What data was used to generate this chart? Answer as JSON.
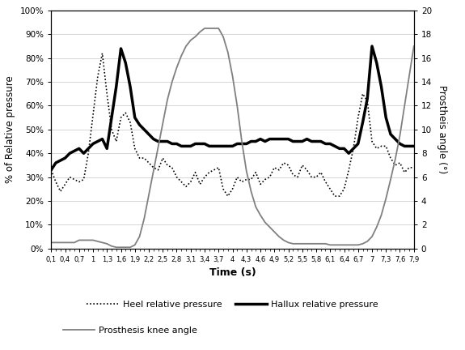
{
  "xlabel": "Time (s)",
  "ylabel_left": "% of Relative pressure",
  "ylabel_right": "Prostheis angle (°)",
  "ylim_left": [
    0,
    100
  ],
  "ylim_right": [
    0,
    20
  ],
  "yticks_left": [
    0,
    10,
    20,
    30,
    40,
    50,
    60,
    70,
    80,
    90,
    100
  ],
  "yticks_right": [
    0,
    2,
    4,
    6,
    8,
    10,
    12,
    14,
    16,
    18,
    20
  ],
  "xtick_labels": [
    "0,1",
    "0,4",
    "0,7",
    "1",
    "1,3",
    "1,6",
    "1,9",
    "2,2",
    "2,5",
    "2,8",
    "3,1",
    "3,4",
    "3,7",
    "4",
    "4,3",
    "4,6",
    "4,9",
    "5,2",
    "5,5",
    "5,8",
    "6,1",
    "6,4",
    "6,7",
    "7",
    "7,3",
    "7,6",
    "7,9"
  ],
  "legend_heel": "Heel relative pressure",
  "legend_hallux": "Hallux relative pressure",
  "legend_knee": "Prosthesis knee angle",
  "time": [
    0.1,
    0.2,
    0.3,
    0.4,
    0.5,
    0.6,
    0.7,
    0.8,
    0.9,
    1.0,
    1.1,
    1.2,
    1.3,
    1.4,
    1.5,
    1.6,
    1.7,
    1.8,
    1.9,
    2.0,
    2.1,
    2.2,
    2.3,
    2.4,
    2.5,
    2.6,
    2.7,
    2.8,
    2.9,
    3.0,
    3.1,
    3.2,
    3.3,
    3.4,
    3.5,
    3.6,
    3.7,
    3.8,
    3.9,
    4.0,
    4.1,
    4.2,
    4.3,
    4.4,
    4.5,
    4.6,
    4.7,
    4.8,
    4.9,
    5.0,
    5.1,
    5.2,
    5.3,
    5.4,
    5.5,
    5.6,
    5.7,
    5.8,
    5.9,
    6.0,
    6.1,
    6.2,
    6.3,
    6.4,
    6.5,
    6.6,
    6.7,
    6.8,
    6.9,
    7.0,
    7.1,
    7.2,
    7.3,
    7.4,
    7.5,
    7.6,
    7.7,
    7.8,
    7.9
  ],
  "heel": [
    33,
    28,
    24,
    27,
    30,
    29,
    28,
    29,
    40,
    56,
    72,
    82,
    65,
    50,
    45,
    55,
    57,
    53,
    42,
    38,
    38,
    36,
    34,
    33,
    38,
    35,
    34,
    30,
    28,
    26,
    28,
    32,
    27,
    30,
    32,
    33,
    34,
    25,
    22,
    25,
    30,
    28,
    29,
    29,
    32,
    27,
    29,
    30,
    34,
    33,
    36,
    35,
    31,
    30,
    35,
    33,
    30,
    30,
    32,
    28,
    25,
    22,
    22,
    25,
    33,
    42,
    55,
    65,
    62,
    45,
    42,
    43,
    43,
    38,
    35,
    36,
    32,
    34,
    34
  ],
  "hallux": [
    33,
    36,
    37,
    38,
    40,
    41,
    42,
    40,
    42,
    44,
    45,
    46,
    42,
    55,
    68,
    84,
    78,
    68,
    55,
    52,
    50,
    48,
    46,
    45,
    45,
    45,
    44,
    44,
    43,
    43,
    43,
    44,
    44,
    44,
    43,
    43,
    43,
    43,
    43,
    43,
    44,
    44,
    44,
    45,
    45,
    46,
    45,
    46,
    46,
    46,
    46,
    46,
    45,
    45,
    45,
    46,
    45,
    45,
    45,
    44,
    44,
    43,
    42,
    42,
    40,
    42,
    44,
    53,
    63,
    85,
    78,
    68,
    55,
    48,
    46,
    44,
    43,
    43,
    43
  ],
  "knee_angle": [
    0.5,
    0.5,
    0.5,
    0.5,
    0.5,
    0.5,
    0.7,
    0.7,
    0.7,
    0.7,
    0.6,
    0.5,
    0.4,
    0.2,
    0.1,
    0.1,
    0.1,
    0.1,
    0.3,
    1.0,
    2.5,
    4.5,
    6.5,
    8.5,
    10.5,
    12.5,
    14.0,
    15.2,
    16.2,
    17.0,
    17.5,
    17.8,
    18.2,
    18.5,
    18.5,
    18.5,
    18.5,
    17.8,
    16.5,
    14.5,
    12.0,
    9.0,
    6.5,
    4.8,
    3.5,
    2.8,
    2.2,
    1.8,
    1.4,
    1.0,
    0.7,
    0.5,
    0.4,
    0.4,
    0.4,
    0.4,
    0.4,
    0.4,
    0.4,
    0.4,
    0.3,
    0.3,
    0.3,
    0.3,
    0.3,
    0.3,
    0.3,
    0.4,
    0.6,
    1.0,
    1.8,
    2.8,
    4.2,
    5.8,
    7.5,
    9.5,
    12.0,
    14.5,
    17.0
  ],
  "background_color": "#ffffff",
  "grid_color": "#d0d0d0",
  "line_color_heel": "#000000",
  "line_color_hallux": "#000000",
  "line_color_knee": "#808080"
}
